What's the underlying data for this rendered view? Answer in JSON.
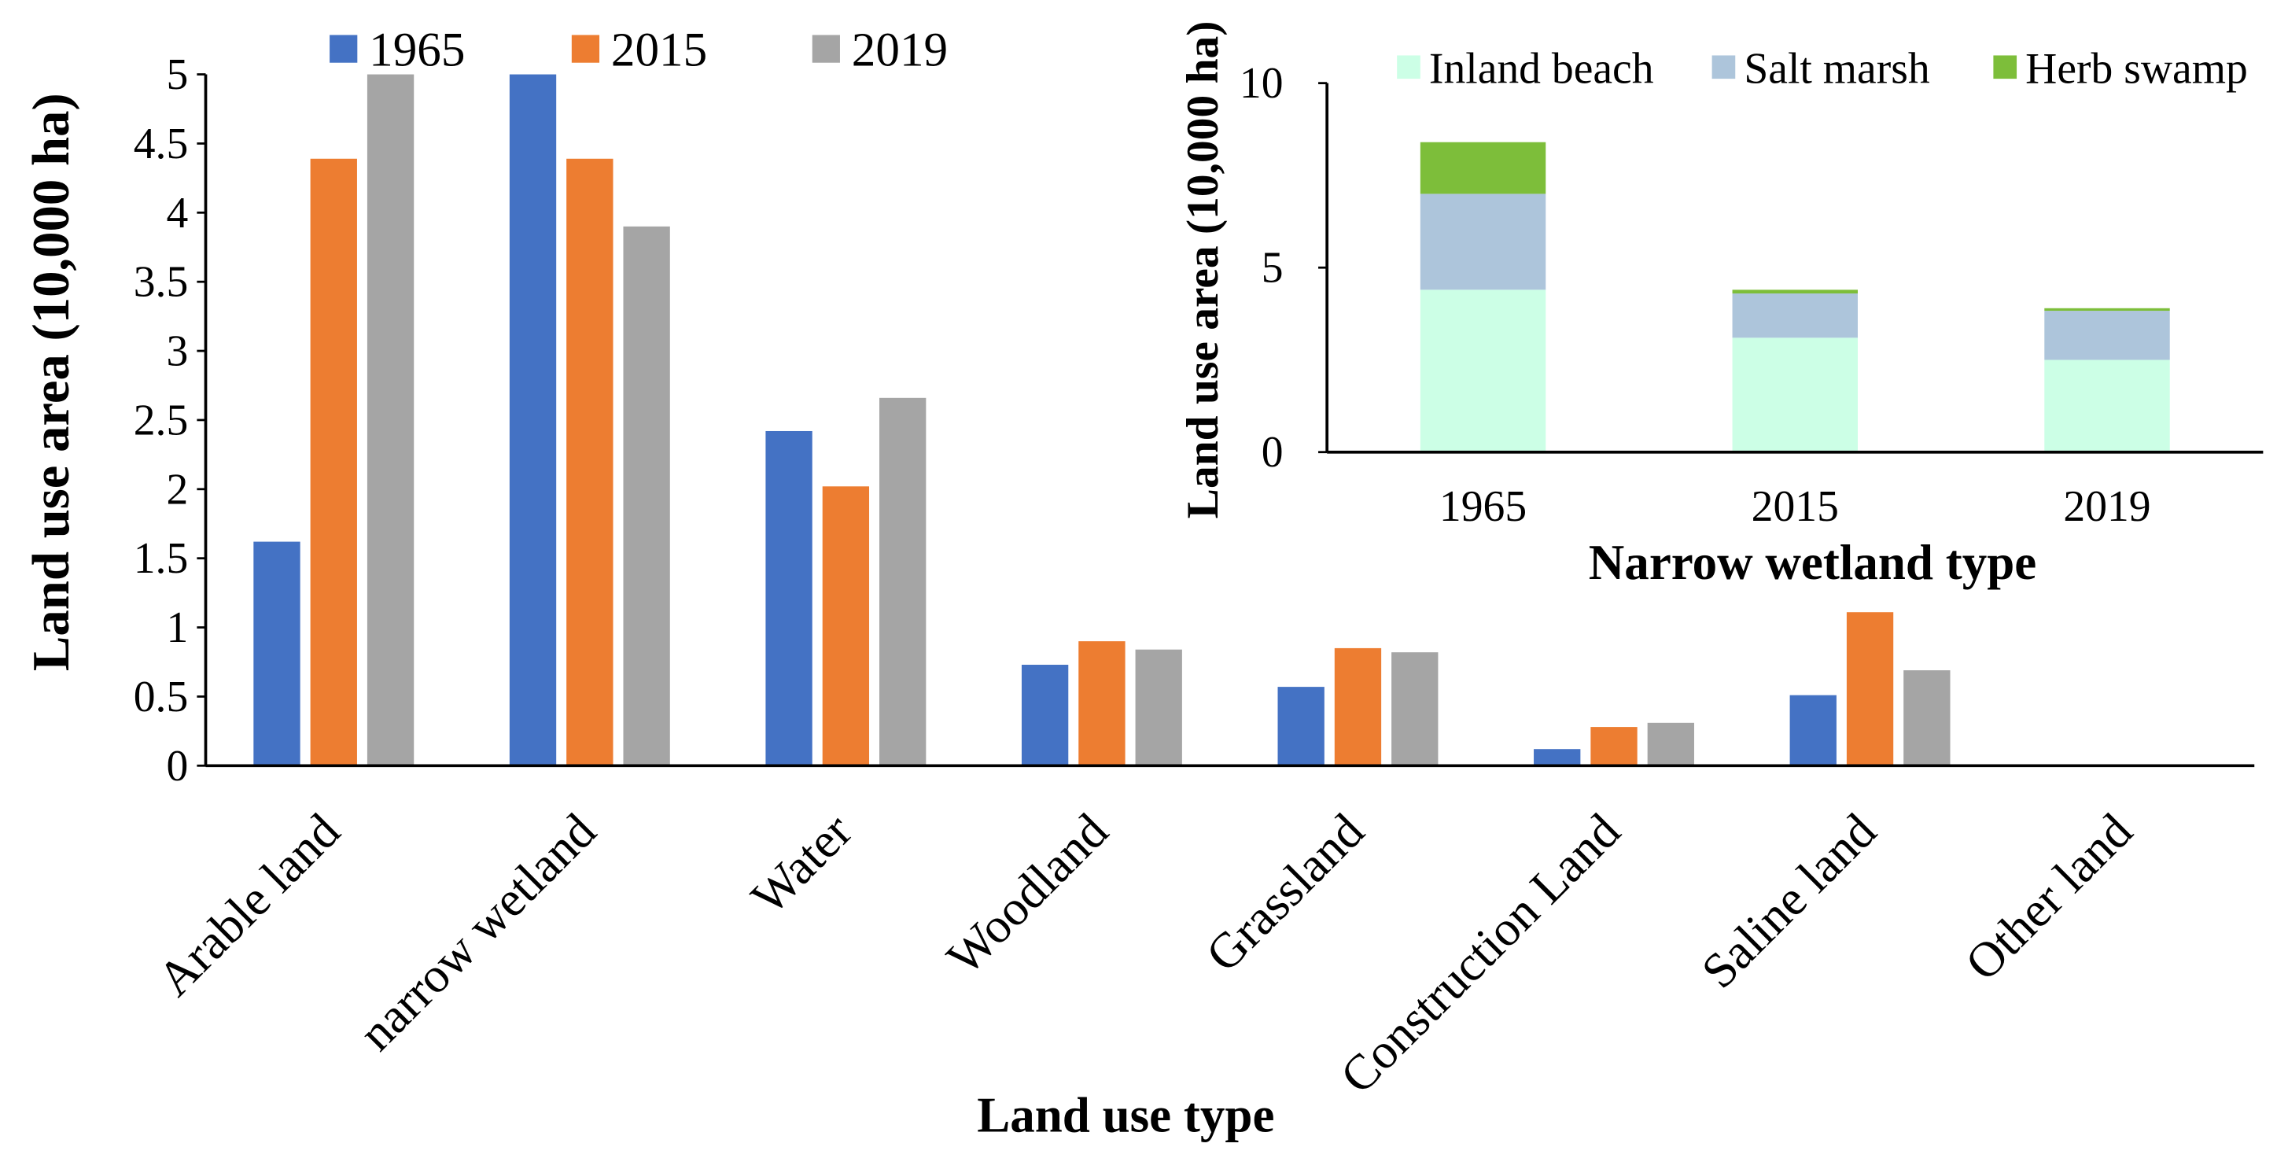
{
  "chart_data": [
    {
      "type": "bar",
      "title": "",
      "xlabel": "Land use type",
      "ylabel": "Land use area (10,000 ha)",
      "ylim": [
        0,
        5
      ],
      "yticks": [
        0,
        0.5,
        1,
        1.5,
        2,
        2.5,
        3,
        3.5,
        4,
        4.5,
        5
      ],
      "categories": [
        "Arable land",
        "narrow wetland",
        "Water",
        "Woodland",
        "Grassland",
        "Construction Land",
        "Saline land",
        "Other land"
      ],
      "series": [
        {
          "name": "1965",
          "color": "#4472C4",
          "values": [
            1.62,
            5.0,
            2.42,
            0.73,
            0.57,
            0.12,
            0.51,
            0
          ]
        },
        {
          "name": "2015",
          "color": "#ED7D31",
          "values": [
            4.39,
            4.39,
            2.02,
            0.9,
            0.85,
            0.28,
            1.11,
            0
          ]
        },
        {
          "name": "2019",
          "color": "#A5A5A5",
          "values": [
            5.0,
            3.9,
            2.66,
            0.84,
            0.82,
            0.31,
            0.69,
            0
          ]
        }
      ],
      "legend": "top",
      "grid": false
    },
    {
      "type": "bar",
      "stacked": true,
      "title": "",
      "xlabel": "Narrow wetland type",
      "ylabel": "Land use area (10,000 ha)",
      "ylim": [
        0,
        10
      ],
      "yticks": [
        0,
        5,
        10
      ],
      "categories": [
        "1965",
        "2015",
        "2019"
      ],
      "series": [
        {
          "name": "Inland beach",
          "color": "#CCFFE6",
          "values": [
            4.4,
            3.1,
            2.5
          ]
        },
        {
          "name": "Salt marsh",
          "color": "#ADC5DB",
          "values": [
            2.6,
            1.2,
            1.33
          ]
        },
        {
          "name": "Herb swamp",
          "color": "#7DBE3A",
          "values": [
            1.4,
            0.1,
            0.07
          ]
        }
      ],
      "legend": "top",
      "grid": false
    }
  ]
}
